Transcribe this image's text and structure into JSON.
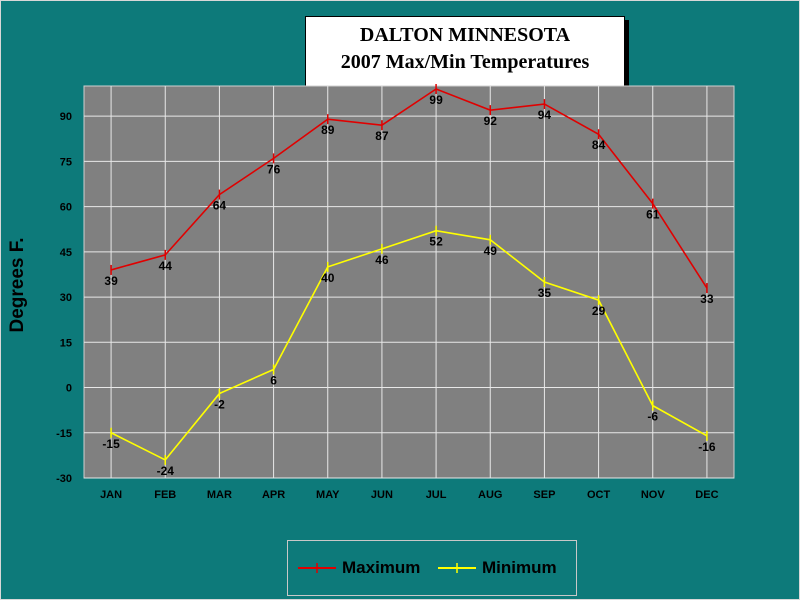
{
  "chart_data": {
    "type": "line",
    "title": "DALTON MINNESOTA",
    "subtitle": "2007 Max/Min Temperatures",
    "xlabel": "",
    "ylabel": "Degrees F.",
    "categories": [
      "JAN",
      "FEB",
      "MAR",
      "APR",
      "MAY",
      "JUN",
      "JUL",
      "AUG",
      "SEP",
      "OCT",
      "NOV",
      "DEC"
    ],
    "series": [
      {
        "name": "Maximum",
        "color": "#e00000",
        "values": [
          39,
          44,
          64,
          76,
          89,
          87,
          99,
          92,
          94,
          84,
          61,
          33
        ]
      },
      {
        "name": "Minimum",
        "color": "#ffff00",
        "values": [
          -15,
          -24,
          -2,
          6,
          40,
          46,
          52,
          49,
          35,
          29,
          -6,
          -16
        ]
      }
    ],
    "ylim": [
      -30,
      100
    ],
    "yticks": [
      -30,
      -15,
      0,
      15,
      30,
      45,
      60,
      75,
      90
    ],
    "grid": true,
    "data_labels": true,
    "legend_position": "bottom",
    "plot_background": "#808080",
    "page_background": "#0d7a7a"
  }
}
